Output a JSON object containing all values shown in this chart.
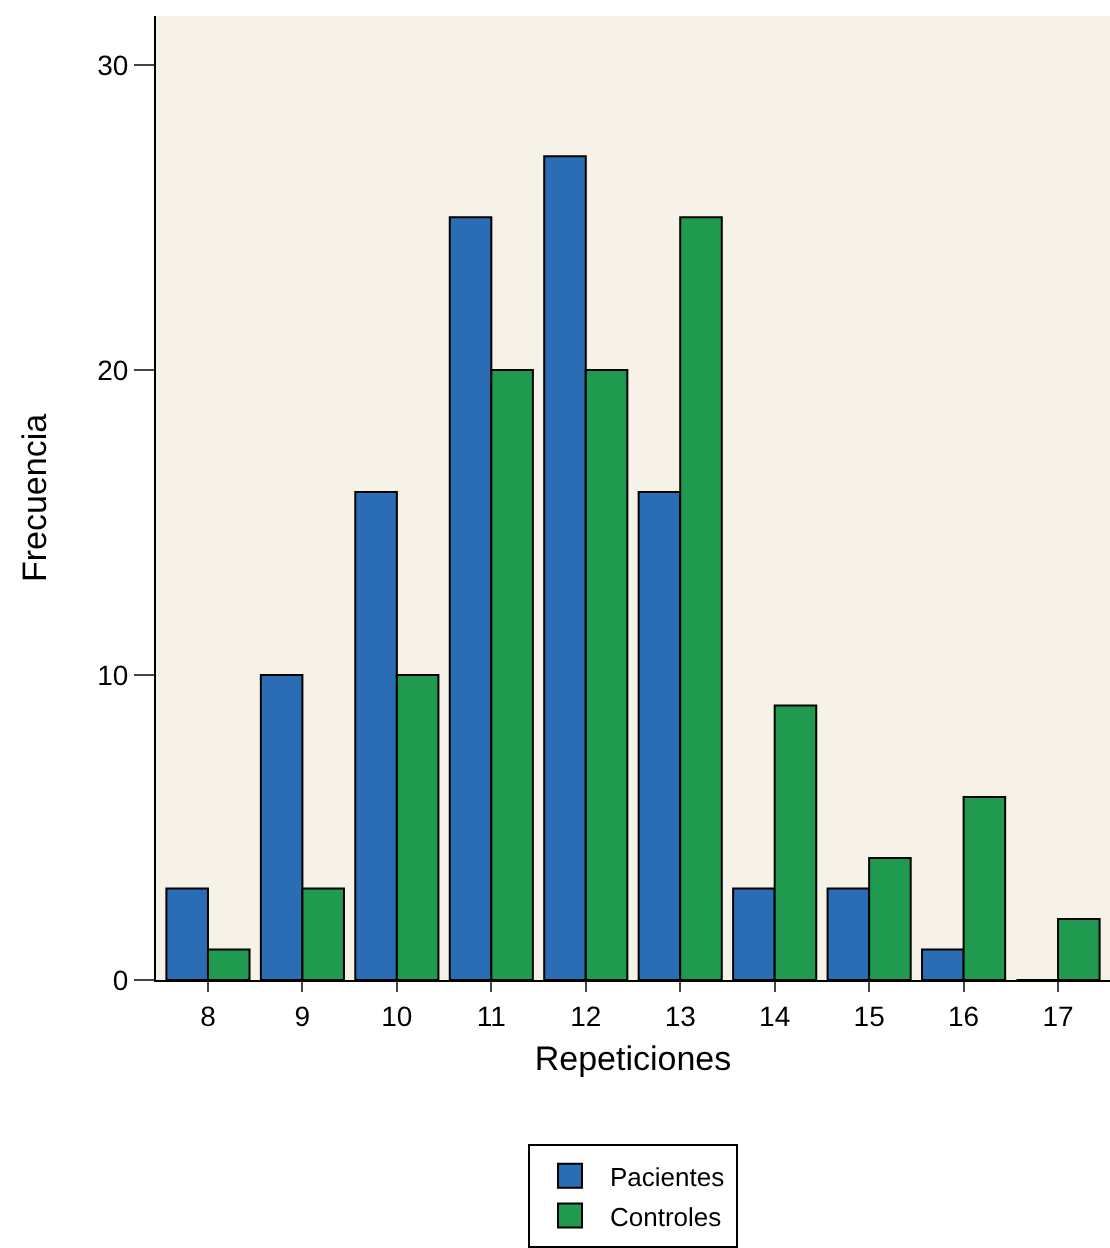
{
  "chart_data": {
    "type": "bar",
    "xlabel": "Repeticiones",
    "ylabel": "Frecuencia",
    "categories": [
      "8",
      "9",
      "10",
      "11",
      "12",
      "13",
      "14",
      "15",
      "16",
      "17"
    ],
    "series": [
      {
        "name": "Pacientes",
        "color": "#2a6db5",
        "values": [
          3,
          10,
          16,
          25,
          27,
          16,
          3,
          3,
          1,
          0
        ]
      },
      {
        "name": "Controles",
        "color": "#1f9a4e",
        "values": [
          1,
          3,
          10,
          20,
          20,
          25,
          9,
          4,
          6,
          2
        ]
      }
    ],
    "ylim": [
      0,
      31.6
    ],
    "yticks": [
      0,
      10,
      20,
      30
    ],
    "grid": false,
    "legend": "bottom"
  }
}
